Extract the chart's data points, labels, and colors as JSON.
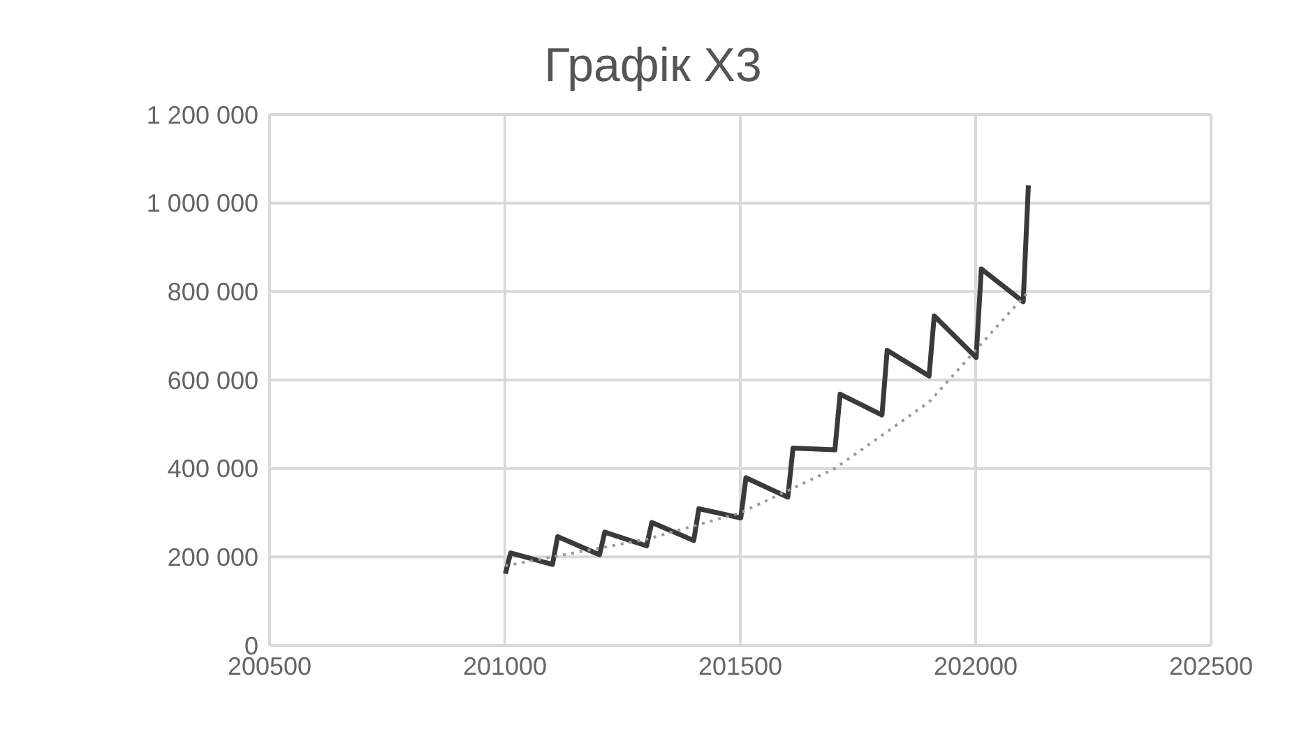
{
  "chart_data": {
    "type": "line",
    "title": "Графік Х3",
    "series": [
      {
        "color": "#3a3a3a",
        "x": [
          201001,
          201012,
          201101,
          201112,
          201201,
          201212,
          201301,
          201312,
          201401,
          201412,
          201501,
          201512,
          201601,
          201612,
          201701,
          201712,
          201801,
          201812,
          201901,
          201912,
          202001,
          202012,
          202101,
          202112
        ],
        "values": [
          162000,
          209000,
          183000,
          246000,
          205000,
          256000,
          225000,
          278000,
          237000,
          309000,
          288000,
          379000,
          335000,
          446000,
          442000,
          568000,
          521000,
          667000,
          609000,
          745000,
          651000,
          851000,
          777000,
          1040000
        ]
      },
      {
        "color": "#9a9a9a",
        "line_style": "dotted",
        "x": [
          201001,
          201301,
          201501,
          201701,
          201901,
          202112
        ],
        "values": [
          180000,
          240000,
          300000,
          400000,
          550000,
          800000
        ]
      }
    ],
    "xlim": [
      200500,
      202500
    ],
    "xticks": [
      200500,
      201000,
      201500,
      202000,
      202500
    ],
    "ylim": [
      0,
      1200000
    ],
    "yticks": [
      {
        "value": 0,
        "label": "0"
      },
      {
        "value": 200000,
        "label": "200 000"
      },
      {
        "value": 400000,
        "label": "400 000"
      },
      {
        "value": 600000,
        "label": "600 000"
      },
      {
        "value": 800000,
        "label": "800 000"
      },
      {
        "value": 1000000,
        "label": "1 000 000"
      },
      {
        "value": 1200000,
        "label": "1 200 000"
      }
    ],
    "grid": true,
    "legend": false,
    "marker": "none",
    "line_style": "solid"
  }
}
